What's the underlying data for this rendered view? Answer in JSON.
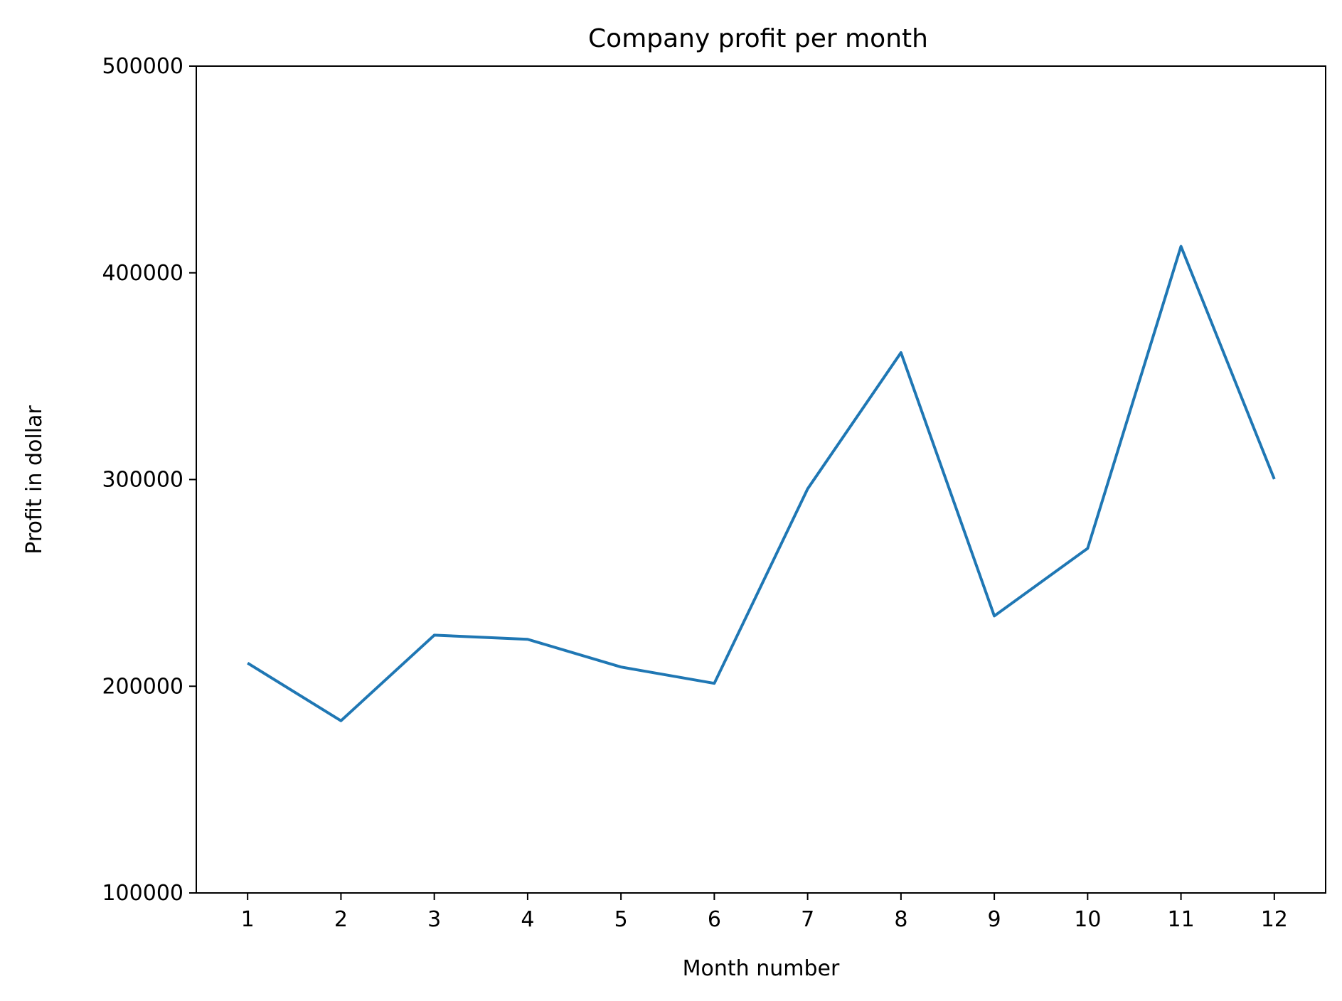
{
  "chart_data": {
    "type": "line",
    "title": "Company profit per month",
    "xlabel": "Month number",
    "ylabel": "Profit in dollar",
    "x": [
      1,
      2,
      3,
      4,
      5,
      6,
      7,
      8,
      9,
      10,
      11,
      12
    ],
    "x_tick_labels": [
      "1",
      "2",
      "3",
      "4",
      "5",
      "6",
      "7",
      "8",
      "9",
      "10",
      "11",
      "12"
    ],
    "y_ticks": [
      100000,
      200000,
      300000,
      400000,
      500000
    ],
    "y_tick_labels": [
      "100000",
      "200000",
      "300000",
      "400000",
      "500000"
    ],
    "xlim": [
      0.45,
      12.55
    ],
    "ylim": [
      100000,
      500000
    ],
    "grid": false,
    "legend": "none",
    "series": [
      {
        "values": [
          211200,
          183300,
          224700,
          222700,
          209300,
          201400,
          295500,
          361400,
          234000,
          266700,
          412800,
          300200
        ],
        "color": "#1f77b4"
      }
    ]
  }
}
